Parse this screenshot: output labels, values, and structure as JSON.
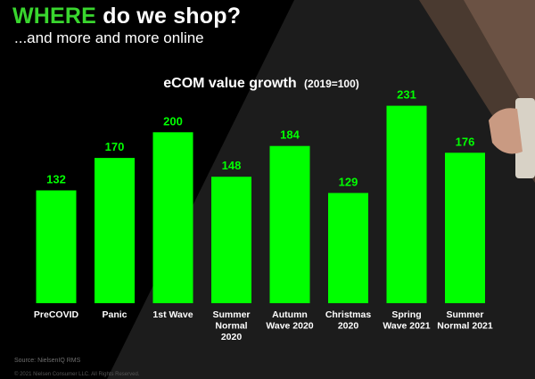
{
  "heading": {
    "accent": "WHERE",
    "rest": "do we shop?",
    "subtitle": "...and more and more online"
  },
  "colors": {
    "bar": "#00ff00",
    "accent": "#39d62e",
    "background": "#000000",
    "panel": "#1e1e1e"
  },
  "chart_data": {
    "type": "bar",
    "title": "eCOM value growth",
    "title_suffix": "(2019=100)",
    "categories": [
      "PreCOVID",
      "Panic",
      "1st Wave",
      "Summer Normal 2020",
      "Autumn Wave 2020",
      "Christmas 2020",
      "Spring Wave 2021",
      "Summer Normal 2021"
    ],
    "category_lines": [
      [
        "PreCOVID"
      ],
      [
        "Panic"
      ],
      [
        "1st Wave"
      ],
      [
        "Summer",
        "Normal",
        "2020"
      ],
      [
        "Autumn",
        "Wave 2020"
      ],
      [
        "Christmas",
        "2020"
      ],
      [
        "Spring",
        "Wave 2021"
      ],
      [
        "Summer",
        "Normal 2021"
      ]
    ],
    "values": [
      132,
      170,
      200,
      148,
      184,
      129,
      231,
      176
    ],
    "ylim": [
      0,
      240
    ],
    "data_labels": true,
    "grid": false,
    "legend": "none",
    "xlabel": "",
    "ylabel": ""
  },
  "footer": {
    "source": "Source: NielsenIQ RMS",
    "copyright": "© 2021 Nielsen Consumer LLC. All Rights Reserved."
  }
}
